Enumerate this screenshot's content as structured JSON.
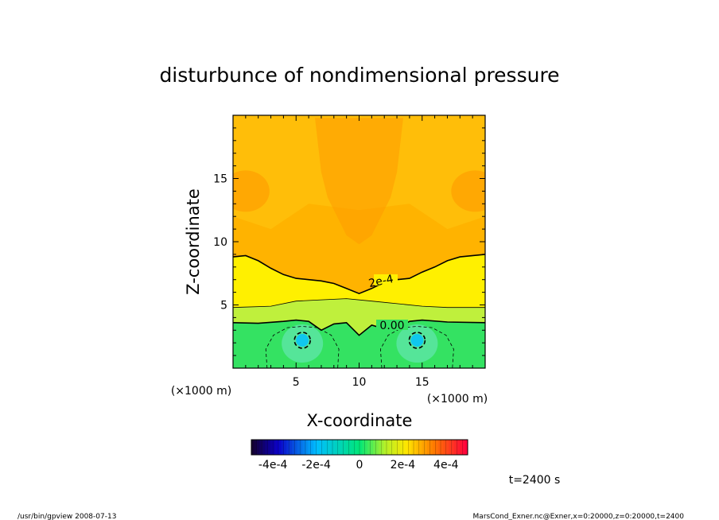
{
  "chart_data": {
    "type": "heatmap",
    "title": "disturbunce of nondimensional pressure",
    "xlabel": "X-coordinate",
    "ylabel": "Z-coordinate",
    "x_unit": "(×1000 m)",
    "y_unit": "(×1000 m)",
    "xlim": [
      0,
      20
    ],
    "ylim": [
      0,
      20
    ],
    "x_ticks": [
      5,
      10,
      15
    ],
    "y_ticks": [
      5,
      10,
      15
    ],
    "x_tick_labels": [
      "5",
      "10",
      "15"
    ],
    "y_tick_labels": [
      "5",
      "10",
      "15"
    ],
    "contour_labels": [
      {
        "text": "2e-4",
        "x": 11.7,
        "z": 6.5
      },
      {
        "text": "0.00",
        "x": 12.4,
        "z": 3.3
      }
    ],
    "colorbar": {
      "range": [
        -0.0005,
        0.0005
      ],
      "tick_labels": [
        "-4e-4",
        "-2e-4",
        "0",
        "2e-4",
        "4e-4"
      ],
      "tick_values": [
        -0.0004,
        -0.0002,
        0,
        0.0002,
        0.0004
      ]
    },
    "field_regions": [
      {
        "name": "lower layer",
        "z_range": [
          0,
          3.6
        ],
        "value": -5e-05
      },
      {
        "name": "thin band",
        "z_range": [
          3.6,
          5.0
        ],
        "value": 7e-05
      },
      {
        "name": "mid layer",
        "z_range": [
          5.0,
          8.8
        ],
        "value": 0.00024
      },
      {
        "name": "upper layer",
        "z_range": [
          8.8,
          20
        ],
        "value": 0.00032
      }
    ],
    "minima": [
      {
        "x": 5.5,
        "z": 2.2,
        "value": -0.00022
      },
      {
        "x": 14.6,
        "z": 2.2,
        "value": -0.00022
      }
    ],
    "time_label": "t=2400 s"
  },
  "footer": {
    "program": "/usr/bin/gpview   2008-07-13",
    "source": "MarsCond_Exner.nc@Exner,x=0:20000,z=0:20000,t=2400"
  },
  "colors": {
    "upper": "#ffb300",
    "upper_light": "#ffc610",
    "upper_dark": "#ff9a00",
    "mid": "#fff000",
    "band": "#bff03c",
    "lower": "#34e262",
    "minimum": "#10c7ee"
  }
}
